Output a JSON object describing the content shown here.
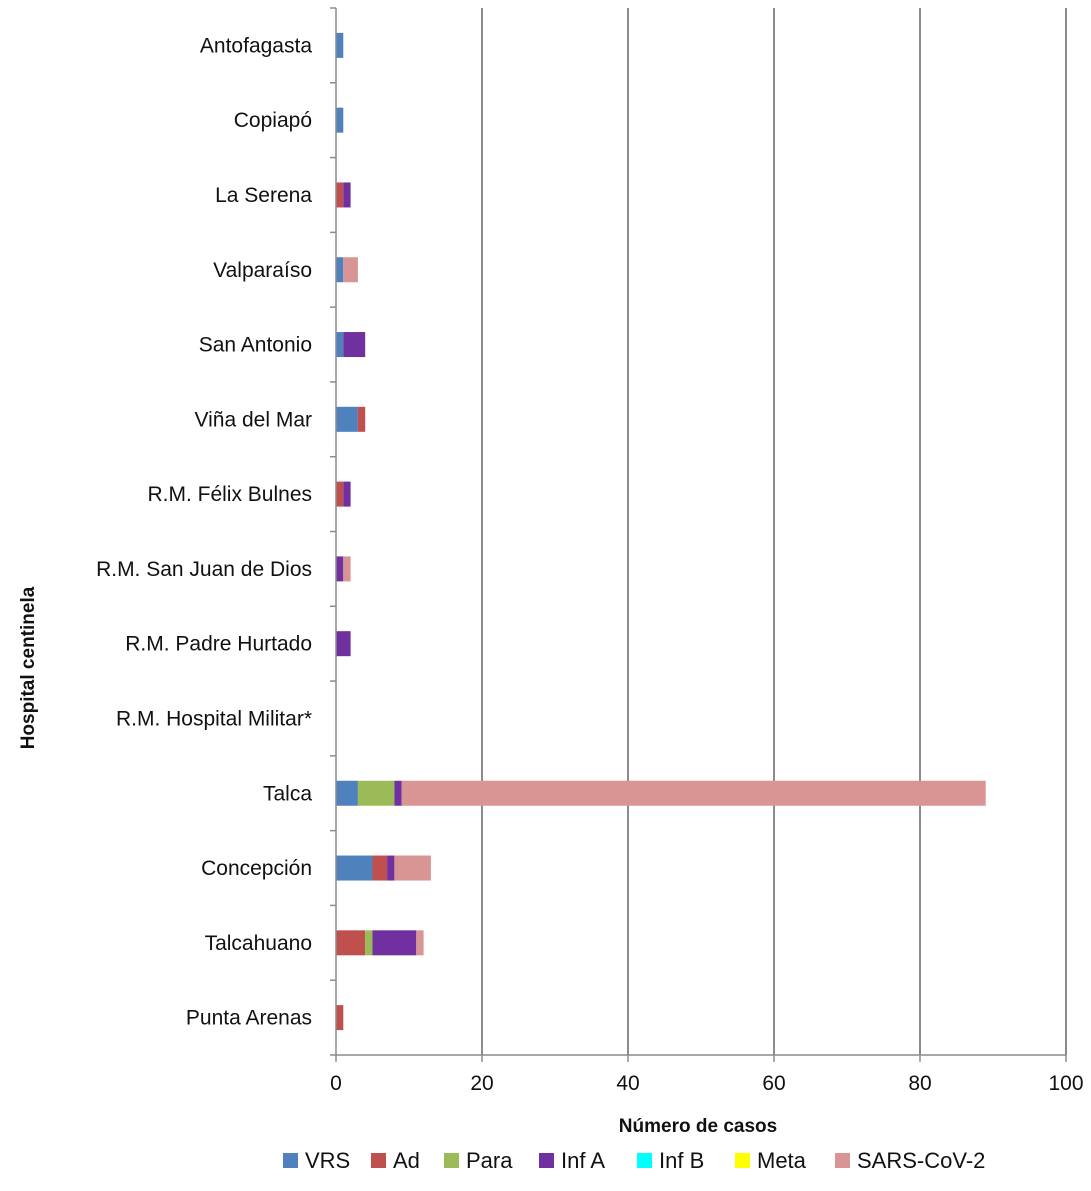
{
  "chart_data": {
    "type": "bar",
    "orientation": "horizontal",
    "stacked": true,
    "xlabel": "Número de casos",
    "ylabel": "Hospital centinela",
    "xlim": [
      0,
      100
    ],
    "xticks": [
      0,
      20,
      40,
      60,
      80,
      100
    ],
    "grid": "vertical",
    "legend_position": "bottom",
    "categories": [
      "Antofagasta",
      "Copiapó",
      "La Serena",
      "Valparaíso",
      "San Antonio",
      "Viña del Mar",
      "R.M. Félix Bulnes",
      "R.M. San Juan de Dios",
      "R.M. Padre Hurtado",
      "R.M. Hospital Militar*",
      "Talca",
      "Concepción",
      "Talcahuano",
      "Punta Arenas"
    ],
    "series": [
      {
        "name": "VRS",
        "color": "#4f81bd",
        "values": [
          1,
          1,
          0,
          1,
          1,
          3,
          0,
          0,
          0,
          0,
          3,
          5,
          0,
          0
        ]
      },
      {
        "name": "Ad",
        "color": "#c0504d",
        "values": [
          0,
          0,
          1,
          0,
          0,
          1,
          1,
          0,
          0,
          0,
          0,
          2,
          4,
          1
        ]
      },
      {
        "name": "Para",
        "color": "#9bbb59",
        "values": [
          0,
          0,
          0,
          0,
          0,
          0,
          0,
          0,
          0,
          0,
          5,
          0,
          1,
          0
        ]
      },
      {
        "name": "Inf A",
        "color": "#7030a0",
        "values": [
          0,
          0,
          1,
          0,
          3,
          0,
          1,
          1,
          2,
          0,
          1,
          1,
          6,
          0
        ]
      },
      {
        "name": "Inf B",
        "color": "#00ffff",
        "values": [
          0,
          0,
          0,
          0,
          0,
          0,
          0,
          0,
          0,
          0,
          0,
          0,
          0,
          0
        ]
      },
      {
        "name": "Meta",
        "color": "#ffff00",
        "values": [
          0,
          0,
          0,
          0,
          0,
          0,
          0,
          0,
          0,
          0,
          0,
          0,
          0,
          0
        ]
      },
      {
        "name": "SARS-CoV-2",
        "color": "#d99594",
        "values": [
          0,
          0,
          0,
          2,
          0,
          0,
          0,
          1,
          0,
          0,
          80,
          5,
          1,
          0
        ]
      }
    ]
  }
}
